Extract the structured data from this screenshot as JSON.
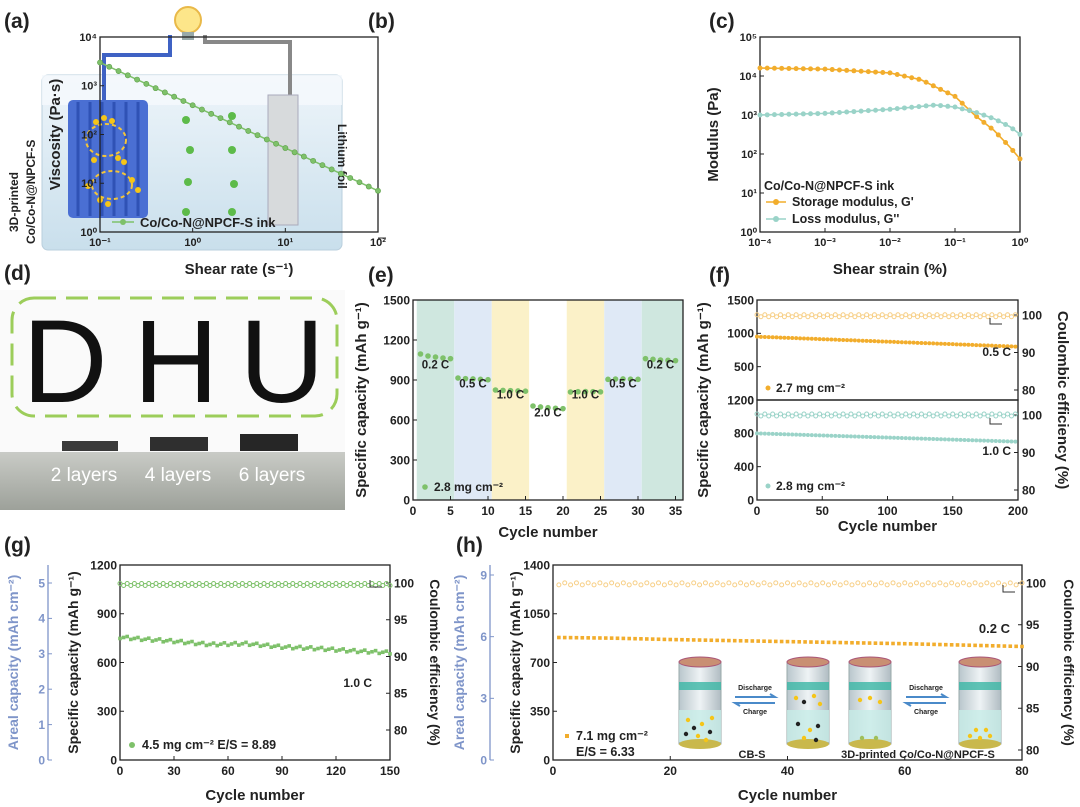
{
  "panels": {
    "a": {
      "tag": "(a)",
      "electrode_label_line1": "3D-printed",
      "electrode_label_line2": "Co/Co-N@NPCF-S",
      "foil_label": "Lithium foil"
    },
    "d": {
      "tag": "(d)",
      "letters": [
        "D",
        "H",
        "U"
      ],
      "layer_labels": [
        "2 layers",
        "4 layers",
        "6 layers"
      ]
    }
  },
  "colors": {
    "green": "#7ec16a",
    "green_dark": "#5ea04a",
    "orange": "#f2ad2c",
    "orange_light": "#f7cf86",
    "teal": "#9ad3c8",
    "blue_axis": "#7f95c9",
    "band_green": "#cfe7df",
    "band_blue": "#dfe9f6",
    "band_yellow": "#fbf1c8"
  },
  "chart_data": [
    {
      "id": "b",
      "tag": "(b)",
      "type": "line",
      "xscale": "log",
      "yscale": "log",
      "xlim": [
        0.1,
        100
      ],
      "ylim": [
        1,
        10000
      ],
      "xticks": [
        "10⁻¹",
        "10⁰",
        "10¹",
        "10²"
      ],
      "yticks": [
        "10⁰",
        "10¹",
        "10²",
        "10³",
        "10⁴"
      ],
      "xlabel": "Shear rate (s⁻¹)",
      "ylabel": "Viscosity (Pa·s)",
      "legend": [
        "Co/Co-N@NPCF-S ink"
      ],
      "series": [
        {
          "name": "Co/Co-N@NPCF-S ink",
          "x": [
            0.1,
            100
          ],
          "y": [
            3000,
            7
          ]
        }
      ]
    },
    {
      "id": "c",
      "tag": "(c)",
      "type": "line",
      "xscale": "log",
      "yscale": "log",
      "xlim": [
        0.0001,
        1
      ],
      "ylim": [
        1,
        100000
      ],
      "xticks": [
        "10⁻⁴",
        "10⁻³",
        "10⁻²",
        "10⁻¹",
        "10⁰"
      ],
      "yticks": [
        "10⁰",
        "10¹",
        "10²",
        "10³",
        "10⁴",
        "10⁵"
      ],
      "xlabel": "Shear strain (%)",
      "ylabel": "Modulus (Pa)",
      "legend_title": "Co/Co-N@NPCF-S ink",
      "series": [
        {
          "name": "Storage modulus, G'",
          "x": [
            0.0001,
            0.001,
            0.01,
            0.03,
            0.1,
            0.2,
            0.4,
            0.7,
            1.0
          ],
          "y": [
            16000,
            15000,
            12000,
            8000,
            3000,
            1000,
            400,
            150,
            75
          ]
        },
        {
          "name": "Loss modulus, G''",
          "x": [
            0.0001,
            0.001,
            0.01,
            0.05,
            0.1,
            0.2,
            0.4,
            0.7,
            1.0
          ],
          "y": [
            1000,
            1100,
            1400,
            1800,
            1600,
            1200,
            800,
            500,
            320
          ]
        }
      ]
    },
    {
      "id": "e",
      "tag": "(e)",
      "type": "scatter",
      "xlim": [
        0,
        36
      ],
      "ylim": [
        0,
        1500
      ],
      "xticks": [
        "0",
        "5",
        "10",
        "15",
        "20",
        "25",
        "30",
        "35"
      ],
      "yticks": [
        "0",
        "300",
        "600",
        "900",
        "1200",
        "1500"
      ],
      "xlabel": "Cycle number",
      "ylabel": "Specific capacity (mAh g⁻¹)",
      "loading": "2.8 mg cm⁻²",
      "rate_labels": [
        "0.2 C",
        "0.5 C",
        "1.0 C",
        "2.0 C",
        "1.0 C",
        "0.5 C",
        "0.2 C"
      ],
      "series": [
        {
          "name": "capacity",
          "x": [
            1,
            2,
            3,
            4,
            5,
            6,
            7,
            8,
            9,
            10,
            11,
            12,
            13,
            14,
            15,
            16,
            17,
            18,
            19,
            20,
            21,
            22,
            23,
            24,
            25,
            26,
            27,
            28,
            29,
            30,
            31,
            32,
            33,
            34,
            35
          ],
          "y": [
            1095,
            1080,
            1072,
            1065,
            1060,
            915,
            910,
            908,
            905,
            902,
            825,
            822,
            820,
            818,
            816,
            705,
            698,
            692,
            688,
            685,
            810,
            812,
            813,
            812,
            811,
            905,
            907,
            908,
            906,
            905,
            1060,
            1055,
            1050,
            1048,
            1045
          ]
        }
      ]
    },
    {
      "id": "f",
      "tag": "(f)",
      "type": "scatter",
      "xlim": [
        0,
        200
      ],
      "xticks": [
        "0",
        "50",
        "100",
        "150",
        "200"
      ],
      "xlabel": "Cycle number",
      "ylabel": "Specific capacity (mAh g⁻¹)",
      "y2label": "Coulombic efficiency (%)",
      "top": {
        "ylim": [
          0,
          1500
        ],
        "yticks": [
          "0",
          "500",
          "1000",
          "1500"
        ],
        "y2ticks": [
          "80",
          "90",
          "100"
        ],
        "loading": "2.7 mg cm⁻²",
        "rate": "0.5 C",
        "capacity": {
          "x": [
            0,
            200
          ],
          "y": [
            950,
            800
          ]
        },
        "ce": 99.8
      },
      "bottom": {
        "ylim": [
          0,
          1200
        ],
        "yticks": [
          "0",
          "400",
          "800",
          "1200"
        ],
        "y2ticks": [
          "80",
          "90",
          "100"
        ],
        "loading": "2.8 mg cm⁻²",
        "rate": "1.0 C",
        "capacity": {
          "x": [
            0,
            200
          ],
          "y": [
            800,
            700
          ]
        },
        "ce": 100
      }
    },
    {
      "id": "g",
      "tag": "(g)",
      "type": "scatter",
      "xlim": [
        0,
        150
      ],
      "ylim": [
        0,
        1200
      ],
      "xticks": [
        "0",
        "30",
        "60",
        "90",
        "120",
        "150"
      ],
      "yticks": [
        "0",
        "300",
        "600",
        "900",
        "1200"
      ],
      "y_areal_ticks": [
        "0",
        "1",
        "2",
        "3",
        "4",
        "5"
      ],
      "y2ticks": [
        "80",
        "85",
        "90",
        "95",
        "100"
      ],
      "xlabel": "Cycle number",
      "ylabel": "Specific capacity (mAh g⁻¹)",
      "ylabel_areal": "Areal capacity (mAh cm⁻²)",
      "y2label": "Coulombic efficiency (%)",
      "legend": "4.5 mg cm⁻²  E/S = 8.89",
      "rate": "1.0 C",
      "capacity": {
        "x": [
          0,
          10,
          30,
          50,
          70,
          90,
          110,
          130,
          150
        ],
        "y": [
          760,
          750,
          735,
          715,
          720,
          700,
          690,
          675,
          665
        ]
      },
      "ce": 99.8
    },
    {
      "id": "h",
      "tag": "(h)",
      "type": "scatter",
      "xlim": [
        0,
        80
      ],
      "ylim": [
        0,
        1400
      ],
      "xticks": [
        "0",
        "20",
        "40",
        "60",
        "80"
      ],
      "yticks": [
        "0",
        "350",
        "700",
        "1050",
        "1400"
      ],
      "y_areal_ticks": [
        "0",
        "3",
        "6",
        "9"
      ],
      "y2ticks": [
        "80",
        "85",
        "90",
        "95",
        "100"
      ],
      "xlabel": "Cycle number",
      "ylabel": "Specific capacity (mAh g⁻¹)",
      "ylabel_areal": "Areal capacity (mAh cm⁻²)",
      "y2label": "Coulombic efficiency (%)",
      "legend_line1": "7.1 mg cm⁻²",
      "legend_line2": "E/S = 6.33",
      "rate": "0.2 C",
      "capacity": {
        "x": [
          0,
          10,
          20,
          40,
          60,
          80
        ],
        "y": [
          880,
          875,
          865,
          850,
          835,
          815
        ]
      },
      "ce": 99.9,
      "inset": {
        "discharge": "Discharge",
        "charge": "Charge",
        "left_caption": "CB-S",
        "right_caption": "3D-printed Co/Co-N@NPCF-S"
      }
    }
  ]
}
